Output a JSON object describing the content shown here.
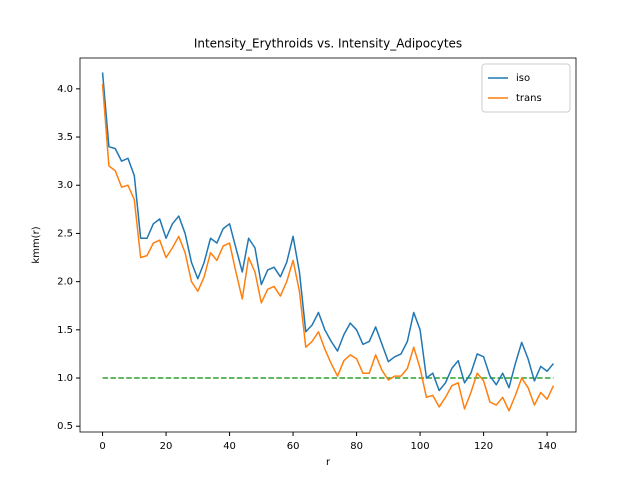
{
  "chart_data": {
    "type": "line",
    "title": "Intensity_Erythroids vs. Intensity_Adipocytes",
    "x_label": "r",
    "y_label": "kmm(r)",
    "x": [
      0,
      2,
      4,
      6,
      8,
      10,
      12,
      14,
      16,
      18,
      20,
      22,
      24,
      26,
      28,
      30,
      32,
      34,
      36,
      38,
      40,
      42,
      44,
      46,
      48,
      50,
      52,
      54,
      56,
      58,
      60,
      62,
      64,
      66,
      68,
      70,
      72,
      74,
      76,
      78,
      80,
      82,
      84,
      86,
      88,
      90,
      92,
      94,
      96,
      98,
      100,
      102,
      104,
      106,
      108,
      110,
      112,
      114,
      116,
      118,
      120,
      122,
      124,
      126,
      128,
      130,
      132,
      134,
      136,
      138,
      140,
      142
    ],
    "series": [
      {
        "name": "iso",
        "color": "#1f77b4",
        "values": [
          4.17,
          3.4,
          3.38,
          3.25,
          3.28,
          3.1,
          2.45,
          2.45,
          2.6,
          2.65,
          2.45,
          2.6,
          2.68,
          2.5,
          2.2,
          2.03,
          2.2,
          2.45,
          2.4,
          2.55,
          2.6,
          2.35,
          2.1,
          2.45,
          2.35,
          1.97,
          2.12,
          2.15,
          2.05,
          2.2,
          2.47,
          2.1,
          1.48,
          1.55,
          1.68,
          1.5,
          1.38,
          1.28,
          1.45,
          1.57,
          1.5,
          1.35,
          1.38,
          1.53,
          1.35,
          1.17,
          1.22,
          1.25,
          1.38,
          1.68,
          1.5,
          1.0,
          1.05,
          0.87,
          0.95,
          1.1,
          1.18,
          0.95,
          1.05,
          1.25,
          1.22,
          1.02,
          0.93,
          1.05,
          0.9,
          1.15,
          1.37,
          1.2,
          0.97,
          1.12,
          1.07,
          1.15
        ]
      },
      {
        "name": "trans",
        "color": "#ff7f0e",
        "values": [
          4.05,
          3.2,
          3.15,
          2.98,
          3.0,
          2.85,
          2.25,
          2.27,
          2.4,
          2.43,
          2.25,
          2.35,
          2.47,
          2.3,
          2.0,
          1.9,
          2.05,
          2.3,
          2.22,
          2.37,
          2.4,
          2.1,
          1.82,
          2.25,
          2.1,
          1.78,
          1.92,
          1.95,
          1.85,
          2.0,
          2.22,
          1.9,
          1.32,
          1.38,
          1.48,
          1.3,
          1.15,
          1.02,
          1.18,
          1.24,
          1.2,
          1.05,
          1.05,
          1.24,
          1.08,
          0.98,
          1.02,
          1.02,
          1.1,
          1.32,
          1.1,
          0.8,
          0.82,
          0.7,
          0.8,
          0.92,
          0.95,
          0.68,
          0.85,
          1.05,
          0.97,
          0.75,
          0.72,
          0.8,
          0.66,
          0.82,
          1.0,
          0.9,
          0.72,
          0.85,
          0.78,
          0.92
        ]
      }
    ],
    "hline": {
      "y": 1,
      "xmin": 0,
      "xmax": 142,
      "color": "#2ca02c",
      "dashed": true
    },
    "xlim": [
      -7.1,
      149.1
    ],
    "ylim": [
      0.44,
      4.32
    ],
    "xticks": [
      0,
      20,
      40,
      60,
      80,
      100,
      120,
      140
    ],
    "yticks": [
      0.5,
      {
        "value": 1,
        "label": "1.0"
      },
      1.5,
      {
        "value": 2,
        "label": "2.0"
      },
      2.5,
      {
        "value": 3,
        "label": "3.0"
      },
      3.5,
      {
        "value": 4,
        "label": "4.0"
      }
    ],
    "legend": "upper right"
  }
}
